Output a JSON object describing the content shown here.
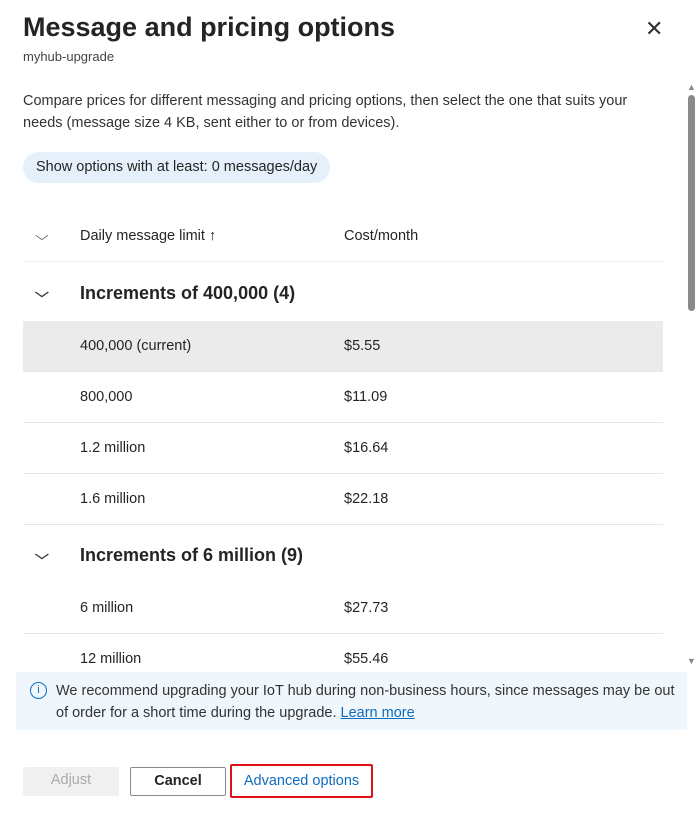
{
  "header": {
    "title": "Message and pricing options",
    "subtitle": "myhub-upgrade",
    "close_icon": "close-icon"
  },
  "description": "Compare prices for different messaging and pricing options, then select the one that suits your needs (message size 4 KB, sent either to or from devices).",
  "filter_pill": "Show options with at least: 0 messages/day",
  "table": {
    "columns": [
      "Daily message limit ↑",
      "Cost/month"
    ],
    "groups": [
      {
        "label": "Increments of 400,000 (4)",
        "rows": [
          [
            "400,000 (current)",
            "$5.55"
          ],
          [
            "800,000",
            "$11.09"
          ],
          [
            "1.2 million",
            "$16.64"
          ],
          [
            "1.6 million",
            "$22.18"
          ]
        ]
      },
      {
        "label": "Increments of 6 million (9)",
        "rows": [
          [
            "6 million",
            "$27.73"
          ],
          [
            "12 million",
            "$55.46"
          ]
        ]
      }
    ]
  },
  "info": {
    "text": "We recommend upgrading your IoT hub during non-business hours, since messages may be out of order for a short time during the upgrade.",
    "link": "Learn more"
  },
  "footer": {
    "adjust": "Adjust",
    "cancel": "Cancel",
    "advanced": "Advanced options"
  },
  "colors": {
    "accent": "#0f6cbd",
    "highlight_border": "#e0101a",
    "selected_row": "#ebebeb"
  }
}
